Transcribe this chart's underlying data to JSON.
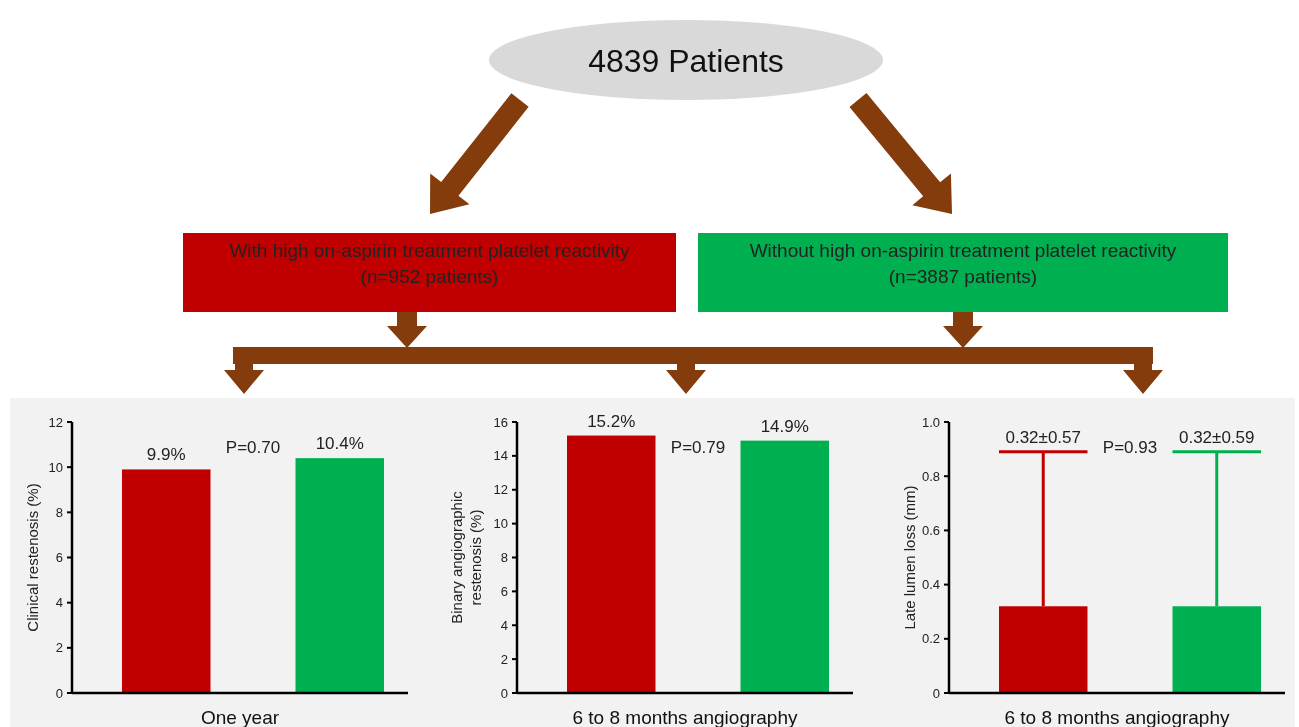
{
  "chart_data": [
    {
      "type": "other",
      "title": "4839 Patients",
      "annotations": [
        "With high  on-aspirin treatment platelet reactivity\n(n=952 patients)",
        "Without high  on-aspirin treatment platelet reactivity\n(n=3887 patients)"
      ]
    },
    {
      "type": "bar",
      "categories": [
        null,
        null
      ],
      "values": [
        9.9,
        10.4
      ],
      "colors": [
        "#c00000",
        "#00b050"
      ],
      "value_labels": [
        "9.9%",
        "10.4%"
      ],
      "xlabel": "One year",
      "ylabel": "Clinical restenosis (%)",
      "ylim": [
        0,
        12
      ],
      "yticks": [
        0,
        2,
        4,
        6,
        8,
        10,
        12
      ],
      "annotations": [
        "P=0.70"
      ]
    },
    {
      "type": "bar",
      "categories": [
        null,
        null
      ],
      "values": [
        15.2,
        14.9
      ],
      "colors": [
        "#c00000",
        "#00b050"
      ],
      "value_labels": [
        "15.2%",
        "14.9%"
      ],
      "xlabel": "6 to 8 months angiography",
      "ylabel": "Binary angiographic\nrestenosis (%)",
      "ylim": [
        0,
        16
      ],
      "yticks": [
        0,
        2,
        4,
        6,
        8,
        10,
        12,
        14,
        16
      ],
      "annotations": [
        "P=0.79"
      ]
    },
    {
      "type": "bar",
      "categories": [
        null,
        null
      ],
      "values": [
        0.32,
        0.32
      ],
      "errors": [
        [
          0.32,
          0.89
        ],
        [
          0.32,
          0.89
        ]
      ],
      "colors": [
        "#c00000",
        "#00b050"
      ],
      "xlabel": "6 to 8 months angiography",
      "ylabel": "Late lumen loss (mm)",
      "ylim": [
        0,
        1
      ],
      "yticks": [
        0,
        0.2,
        0.4,
        0.6,
        0.8,
        {
          "value": 1,
          "label": "1.0"
        }
      ],
      "annotations": [
        {
          "text": "0.32±0.57",
          "y": 0.89
        },
        "P=0.93",
        {
          "text": "0.32±0.59",
          "y": 0.89
        }
      ]
    }
  ]
}
